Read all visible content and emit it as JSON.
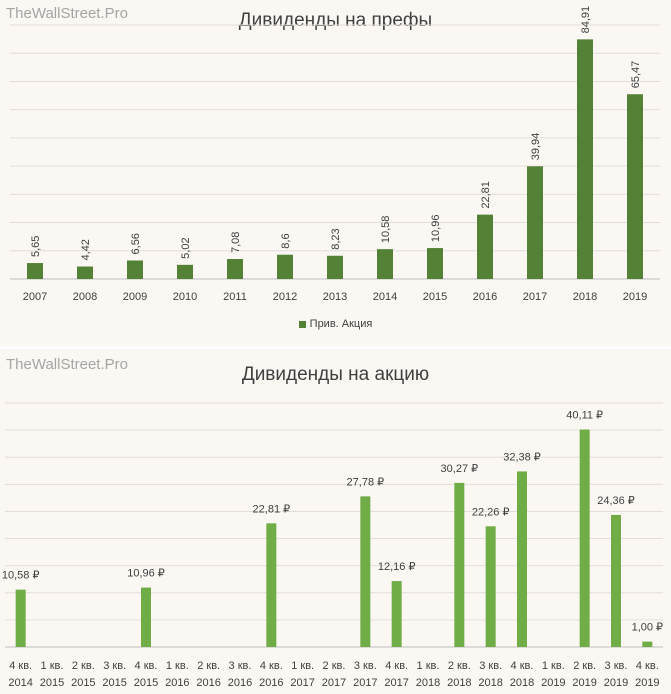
{
  "watermark": "TheWallStreet.Pro",
  "chart_data": [
    {
      "type": "bar",
      "title": "Дивиденды на префы",
      "categories": [
        "2007",
        "2008",
        "2009",
        "2010",
        "2011",
        "2012",
        "2013",
        "2014",
        "2015",
        "2016",
        "2017",
        "2018",
        "2019"
      ],
      "series": [
        {
          "name": "Прив. Акция",
          "values": [
            5.65,
            4.42,
            6.56,
            5.02,
            7.08,
            8.6,
            8.23,
            10.58,
            10.96,
            22.81,
            39.94,
            84.91,
            65.47
          ]
        }
      ],
      "data_labels": [
        "5,65",
        "4,42",
        "6,56",
        "5,02",
        "7,08",
        "8,6",
        "8,23",
        "10,58",
        "10,96",
        "22,81",
        "39,94",
        "84,91",
        "65,47"
      ],
      "color": "#538135",
      "ylim": [
        0,
        90
      ],
      "grid": true,
      "legend_position": "bottom"
    },
    {
      "type": "bar",
      "title": "Дивиденды на акцию",
      "categories": [
        [
          "4 кв.",
          "2014"
        ],
        [
          "1 кв.",
          "2015"
        ],
        [
          "2 кв.",
          "2015"
        ],
        [
          "3 кв.",
          "2015"
        ],
        [
          "4 кв.",
          "2015"
        ],
        [
          "1 кв.",
          "2016"
        ],
        [
          "2 кв.",
          "2016"
        ],
        [
          "3 кв.",
          "2016"
        ],
        [
          "4 кв.",
          "2016"
        ],
        [
          "1 кв.",
          "2017"
        ],
        [
          "2 кв.",
          "2017"
        ],
        [
          "3 кв.",
          "2017"
        ],
        [
          "4 кв.",
          "2017"
        ],
        [
          "1 кв.",
          "2018"
        ],
        [
          "2 кв.",
          "2018"
        ],
        [
          "3 кв.",
          "2018"
        ],
        [
          "4 кв.",
          "2018"
        ],
        [
          "1 кв.",
          "2019"
        ],
        [
          "2 кв.",
          "2019"
        ],
        [
          "3 кв.",
          "2019"
        ],
        [
          "4 кв.",
          "2019"
        ]
      ],
      "values": [
        10.58,
        0,
        0,
        0,
        10.96,
        0,
        0,
        0,
        22.81,
        0,
        0,
        27.78,
        12.16,
        0,
        30.27,
        22.26,
        32.38,
        0,
        40.11,
        24.36,
        1.0
      ],
      "data_labels": [
        "10,58 ₽",
        "",
        "",
        "",
        "10,96 ₽",
        "",
        "",
        "",
        "22,81 ₽",
        "",
        "",
        "27,78 ₽",
        "12,16 ₽",
        "",
        "30,27 ₽",
        "22,26 ₽",
        "32,38 ₽",
        "",
        "40,11 ₽",
        "24,36 ₽",
        "1,00 ₽"
      ],
      "color": "#70ad47",
      "ylim": [
        0,
        45
      ],
      "grid": true
    }
  ]
}
